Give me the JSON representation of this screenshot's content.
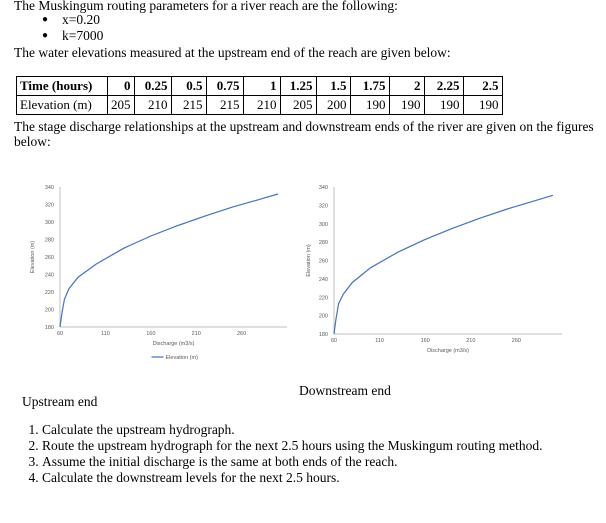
{
  "intro": "The Muskingum routing parameters for a river reach are the following:",
  "params": [
    "x=0.20",
    "k=7000"
  ],
  "water_intro": "The water elevations measured at the upstream end of the reach are given below:",
  "table": {
    "row_headers": [
      "Time (hours)",
      "Elevation (m)"
    ],
    "time": [
      "0",
      "0.25",
      "0.5",
      "0.75",
      "1",
      "1.25",
      "1.5",
      "1.75",
      "2",
      "2.25",
      "2.5"
    ],
    "elevation": [
      "205",
      "210",
      "215",
      "215",
      "210",
      "205",
      "200",
      "190",
      "190",
      "190",
      "190"
    ]
  },
  "stage_text_1": "The stage discharge relationships at the upstream and downstream ends of the river are given on the figures",
  "stage_text_2": "below:",
  "chart_data": [
    {
      "type": "line",
      "title": "",
      "xlabel": "Discharge (m3/s)",
      "ylabel": "Elevation (m)",
      "xticks": [
        "60",
        "110",
        "160",
        "210",
        "260"
      ],
      "yticks": [
        "180",
        "200",
        "220",
        "240",
        "260",
        "280",
        "300",
        "320",
        "340"
      ],
      "xlim": [
        60,
        310
      ],
      "ylim": [
        180,
        340
      ],
      "legend": "bottom",
      "series": [
        {
          "name": "Elevation (m)",
          "color": "#4472c4",
          "x": [
            60,
            62,
            65,
            70,
            80,
            100,
            130,
            160,
            190,
            220,
            250,
            280,
            300
          ],
          "y": [
            180,
            195,
            212,
            224,
            237,
            252,
            270,
            284,
            296,
            307,
            317,
            326,
            332
          ]
        }
      ]
    },
    {
      "type": "line",
      "title": "",
      "xlabel": "Discharge (m3/s)",
      "ylabel": "Elevation (m)",
      "xticks": [
        "60",
        "110",
        "160",
        "210",
        "260"
      ],
      "yticks": [
        "180",
        "200",
        "220",
        "240",
        "260",
        "280",
        "300",
        "320",
        "340"
      ],
      "xlim": [
        60,
        310
      ],
      "ylim": [
        180,
        340
      ],
      "series": [
        {
          "name": "",
          "color": "#4472c4",
          "x": [
            60,
            62,
            65,
            70,
            80,
            100,
            130,
            160,
            190,
            220,
            250,
            280,
            300
          ],
          "y": [
            180,
            195,
            213,
            223,
            236,
            252,
            269,
            283,
            295,
            306,
            316,
            325,
            331
          ]
        }
      ]
    }
  ],
  "label_upstream": "Upstream end",
  "label_downstream": "Downstream end",
  "tasks": [
    "Calculate the upstream hydrograph.",
    "Route the upstream hydrograph for the next 2.5 hours using the Muskingum routing method.",
    " Assume the initial discharge is the same at both ends of the reach.",
    "Calculate the downstream levels for the next 2.5 hours."
  ]
}
